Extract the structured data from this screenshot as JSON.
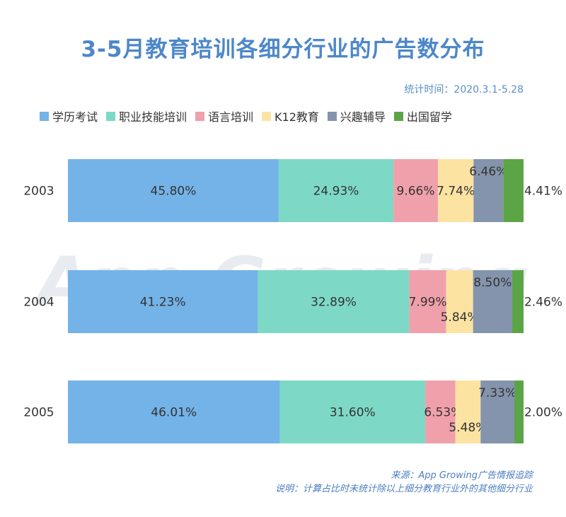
{
  "header": {
    "title": "3-5月教育培训各细分行业的广告数分布",
    "period": "统计时间：2020.3.1-5.28"
  },
  "colors": [
    "#74b3e8",
    "#7dd9c6",
    "#f0a0ab",
    "#fce3a2",
    "#8494ad",
    "#5ca547"
  ],
  "watermark": "App Growing",
  "chart_data": {
    "type": "bar",
    "orientation": "horizontal",
    "stacked": true,
    "categories": [
      "2003",
      "2004",
      "2005"
    ],
    "series": [
      {
        "name": "学历考试",
        "values": [
          45.8,
          41.23,
          46.01
        ],
        "labels": [
          "45.80%",
          "41.23%",
          "46.01%"
        ]
      },
      {
        "name": "职业技能培训",
        "values": [
          24.93,
          32.89,
          31.6
        ],
        "labels": [
          "24.93%",
          "32.89%",
          "31.60%"
        ]
      },
      {
        "name": "语言培训",
        "values": [
          9.66,
          7.99,
          6.53
        ],
        "labels": [
          "9.66%",
          "7.99%",
          "6.53%"
        ]
      },
      {
        "name": "K12教育",
        "values": [
          7.74,
          5.84,
          5.48
        ],
        "labels": [
          "7.74%",
          "5.84%",
          "5.48%"
        ]
      },
      {
        "name": "兴趣辅导",
        "values": [
          6.46,
          8.5,
          7.33
        ],
        "labels": [
          "6.46%",
          "8.50%",
          "7.33%"
        ]
      },
      {
        "name": "出国留学",
        "values": [
          4.41,
          2.46,
          2.0
        ],
        "labels": [
          "4.41%",
          "2.46%",
          "2.00%"
        ]
      }
    ],
    "xlim": [
      0,
      100
    ],
    "legend_position": "top",
    "grid": false
  },
  "footer": {
    "source": "来源：App Growing广告情报追踪",
    "note": "说明：计算占比时未统计除以上细分教育行业外的其他细分行业"
  }
}
